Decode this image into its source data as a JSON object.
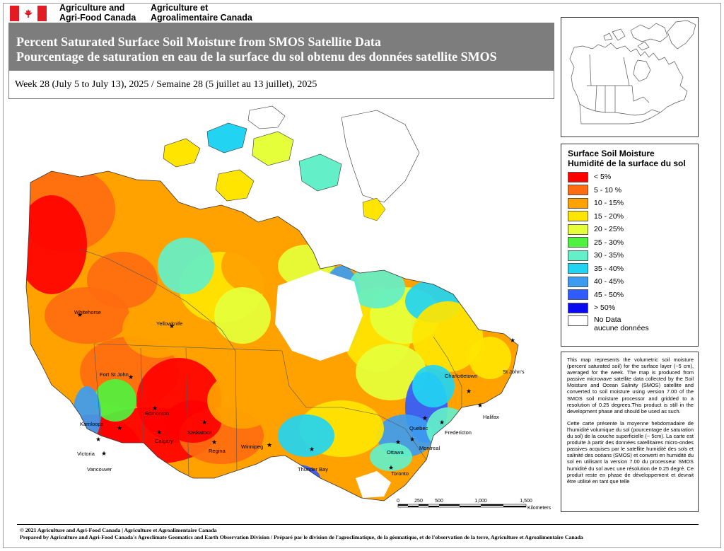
{
  "header": {
    "agency_en": [
      "Agriculture and",
      "Agri-Food Canada"
    ],
    "agency_fr": [
      "Agriculture et",
      "Agroalimentaire Canada"
    ]
  },
  "title": {
    "line_en": "Percent Saturated Surface Soil Moisture from SMOS Satellite Data",
    "line_fr": "Pourcentage de saturation en eau de la surface du sol obtenu des données satellite SMOS",
    "subtitle": "Week 28 (July 5  to July 13), 2025 / Semaine 28 (5 juillet au 13 juillet), 2025"
  },
  "legend": {
    "title_en": "Surface Soil Moisture",
    "title_fr": "Humidité de la surface du sol",
    "items": [
      {
        "label": "< 5%",
        "color": "#ff0000"
      },
      {
        "label": "5 - 10 %",
        "color": "#ff6b10"
      },
      {
        "label": "10 - 15%",
        "color": "#ffa200"
      },
      {
        "label": "15 - 20%",
        "color": "#ffe500"
      },
      {
        "label": "20 - 25%",
        "color": "#e5ff3a"
      },
      {
        "label": "25 - 30%",
        "color": "#4ff23e"
      },
      {
        "label": "30 - 35%",
        "color": "#63f0c8"
      },
      {
        "label": "35 - 40%",
        "color": "#22d4f2"
      },
      {
        "label": "40 - 45%",
        "color": "#3d9cf0"
      },
      {
        "label": "45 - 50%",
        "color": "#2f5bff"
      },
      {
        "label": "> 50%",
        "color": "#0a0af0"
      }
    ],
    "nodata": [
      "No Data",
      "aucune données"
    ]
  },
  "notes": {
    "en": "This map represents the volumetric soil moisture (percent saturated soil) for the surface layer (~5 cm), averaged for the week. The map is produced from passive microwave satellite data collected by the Soil Moisture and Ocean Salinity (SMOS) satellite and converted to soil moisture using version 7.00 of the SMOS soil moisture processor and gridded to a resolution of 0.25 degrees.This product is still in the development phase and should be used as such.",
    "fr": "Cette carte présente la moyenne hebdomadaire de l'humidité volumique du sol (pourcentage de saturation du sol) de la couche superficielle (~ 5cm). La carte est produite à partir des données satellitaires micro-ondes passives acquises par le satellite humidité des sols et salinité des océans (SMOS) et converti en humidité du sol en utilisant la version 7.00 du processeur SMOS humidité du sol avec une résolution de 0.25 degré. Ce produit reste en phase de développement et devrait être utilisé en tant que telle"
  },
  "cities": [
    {
      "name": "Whitehorse"
    },
    {
      "name": "Yellowknife"
    },
    {
      "name": "Fort St John"
    },
    {
      "name": "Edmonton"
    },
    {
      "name": "Kamloops"
    },
    {
      "name": "Calgary"
    },
    {
      "name": "Saskatoon"
    },
    {
      "name": "Regina"
    },
    {
      "name": "Winnipeg"
    },
    {
      "name": "Victoria"
    },
    {
      "name": "Vancouver"
    },
    {
      "name": "Thunder Bay"
    },
    {
      "name": "Toronto"
    },
    {
      "name": "Ottawa"
    },
    {
      "name": "Montreal"
    },
    {
      "name": "Quebec"
    },
    {
      "name": "Fredericton"
    },
    {
      "name": "Charlottetown"
    },
    {
      "name": "Halifax"
    },
    {
      "name": "St John's"
    }
  ],
  "scale": {
    "ticks": [
      "0",
      "250",
      "500",
      "1,000",
      "1,500"
    ],
    "unit": "Kilometers"
  },
  "footer": {
    "line1": "© 2021 Agriculture and Agri-Food Canada | Agriculture et Agroalimentaire Canada",
    "line2": "Prepared by Agriculture and Agri-Food Canada's Agroclimate Geomatics and Earth Observation Division / Préparé par le division de l'agroclimatique, de la géomatique, et de l'observation de la terre, Agriculture et Agroalimentaire Canada"
  }
}
